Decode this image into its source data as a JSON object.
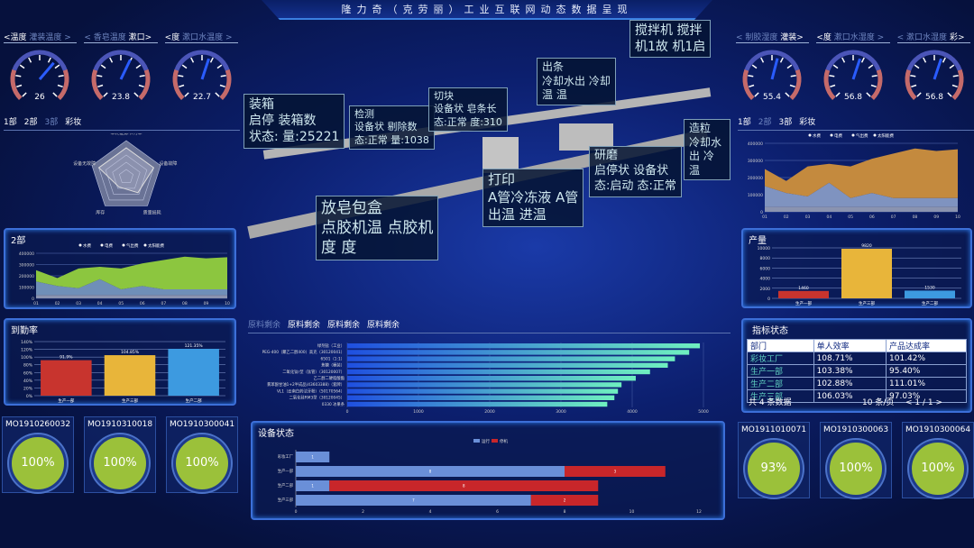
{
  "title": "隆力奇（克劳丽）工业互联网动态数据呈现",
  "left": {
    "gauge_tabs": [
      {
        "prev": "<温度",
        "label": "灌装温度 >"
      },
      {
        "prev": "< 香皂温度",
        "label": "漱口>"
      },
      {
        "prev": "<度",
        "label": "漱口水温度 >"
      }
    ],
    "gauges": [
      {
        "value": 26,
        "max": 40
      },
      {
        "value": 23.8,
        "max": 40
      },
      {
        "value": 22.7,
        "max": 40
      }
    ],
    "dept_tabs": [
      "1部",
      "2部",
      "3部",
      "彩妆"
    ],
    "radar": {
      "labels": [
        "单耗能源节约率",
        "设备故障",
        "质量损耗",
        "库存",
        "设备无故障"
      ],
      "values": [
        0.8,
        0.8,
        0.55,
        0.35,
        0.8
      ]
    },
    "area_panel_title": "2部",
    "attendance_title": "到勤率",
    "cards": [
      {
        "id": "MO1910260032",
        "pct": "100%"
      },
      {
        "id": "MO1910310018",
        "pct": "100%"
      },
      {
        "id": "MO1910300041",
        "pct": "100%"
      }
    ]
  },
  "area_chart_left": {
    "type": "area",
    "x": [
      "01",
      "02",
      "03",
      "04",
      "05",
      "06",
      "07",
      "08",
      "09",
      "10"
    ],
    "ylim": [
      0,
      400000
    ],
    "yticks": [
      "0",
      "100000",
      "200000",
      "300000",
      "400000"
    ],
    "series": [
      {
        "name": "水费",
        "values": [
          30000,
          30000,
          30000,
          30000,
          30000,
          30000,
          30000,
          30000,
          30000,
          30000
        ]
      },
      {
        "name": "电费",
        "values": [
          120000,
          80000,
          60000,
          140000,
          50000,
          80000,
          50000,
          50000,
          50000,
          50000
        ]
      },
      {
        "name": "气出费",
        "values": [
          100000,
          70000,
          175000,
          110000,
          185000,
          200000,
          260000,
          290000,
          275000,
          285000
        ]
      },
      {
        "name": "太阳能费",
        "values": [
          0,
          0,
          0,
          0,
          0,
          0,
          0,
          0,
          0,
          0
        ]
      }
    ],
    "colors": [
      "#8a93b0",
      "#6f8fb8",
      "#8cc63f"
    ]
  },
  "attendance_chart": {
    "type": "bar",
    "categories": [
      "生产一部",
      "生产三部",
      "生产二部"
    ],
    "values": [
      91.9,
      104.85,
      121.35
    ],
    "labels": [
      "91.9%",
      "104.85%",
      "121.35%"
    ],
    "ylim": [
      0,
      140
    ],
    "yticks": [
      "0%",
      "20%",
      "40%",
      "60%",
      "80%",
      "100%",
      "120%",
      "140%"
    ],
    "colors": [
      "#c8342e",
      "#e8b53a",
      "#3d9ae0"
    ]
  },
  "center": {
    "scene_labels": [
      {
        "t1": "装箱",
        "t2": "启停  装箱数",
        "t3": "状态: 量:25221"
      },
      {
        "t1": "检测",
        "t2": "设备状 剔除数",
        "t3": "态:正常 量:1038"
      },
      {
        "t1": "切块",
        "t2": "设备状 皂条长",
        "t3": "态:正常 度:310"
      },
      {
        "t1": "出条",
        "t2": "冷却水出 冷却",
        "t3": "温     温"
      },
      {
        "t1": "搅拌机 搅拌",
        "t2": "机1故 机1启",
        "t3": ""
      },
      {
        "t1": "放皂包盒",
        "t2": "点胶机温 点胶机",
        "t3": "度      度"
      },
      {
        "t1": "打印",
        "t2": "A管冷冻液 A管",
        "t3": "出温     进温"
      },
      {
        "t1": "研磨",
        "t2": "启停状 设备状",
        "t3": "态:启动 态:正常"
      },
      {
        "t1": "造粒",
        "t2": "冷却水出 冷",
        "t3": "温"
      }
    ],
    "material_tabs": [
      "原料剩余",
      "原料剩余",
      "原料剩余",
      "原料剩余"
    ],
    "device_status_title": "设备状态"
  },
  "material_chart": {
    "type": "bar",
    "orientation": "horizontal",
    "categories": [
      "绿剂盐（工业）",
      "PEG-400（聚乙二醇400）高克（30120041）",
      "6501（1:1）",
      "焦糖（桶装）",
      "二氧化钛r型（钛管）（30120007）",
      "乙二醇二硬脂酸酯",
      "氯苯酚甘油1+2半成品(43603388)（套牌）",
      "VL1（云南白药洁牙粉）（50170564）",
      "二氧化硅RM3型（30120045）",
      "0330 冰果条"
    ],
    "values": [
      4950,
      4800,
      4600,
      4500,
      4250,
      4050,
      3850,
      3800,
      3750,
      3650
    ],
    "xlim": [
      0,
      5000
    ],
    "xticks": [
      "0",
      "1000",
      "2000",
      "3000",
      "4000",
      "5000"
    ]
  },
  "device_chart": {
    "type": "bar",
    "orientation": "horizontal",
    "stacked": true,
    "categories": [
      "彩妆工厂",
      "生产一部",
      "生产二部",
      "生产三部"
    ],
    "xlim": [
      0,
      12
    ],
    "xticks": [
      "0",
      "2",
      "4",
      "6",
      "8",
      "10",
      "12"
    ],
    "series": [
      {
        "name": "运行",
        "values": [
          1,
          8,
          1,
          7
        ],
        "color": "#6a8fd8"
      },
      {
        "name": "停机",
        "values": [
          0,
          3,
          8,
          2
        ],
        "color": "#c8262a"
      }
    ]
  },
  "right": {
    "gauge_tabs": [
      {
        "prev": "< 制胶湿度",
        "label": "灌装>"
      },
      {
        "prev": "<度",
        "label": "漱口水湿度 >"
      },
      {
        "prev": "< 漱口水湿度",
        "label": "彩>"
      }
    ],
    "gauges": [
      {
        "value": 55.4,
        "max": 100
      },
      {
        "value": 56.8,
        "max": 100
      },
      {
        "value": 56.8,
        "max": 100
      }
    ],
    "dept_tabs": [
      "1部",
      "2部",
      "3部",
      "彩妆"
    ],
    "output_title": "产量",
    "kpi": {
      "title": "指标状态",
      "headers": [
        "部门",
        "单人效率",
        "产品达成率"
      ],
      "rows": [
        [
          "彩妆工厂",
          "108.71%",
          "101.42%"
        ],
        [
          "生产一部",
          "103.38%",
          "95.40%"
        ],
        [
          "生产二部",
          "102.88%",
          "111.01%"
        ],
        [
          "生产三部",
          "106.03%",
          "97.03%"
        ]
      ],
      "total": "共 4 条数据",
      "page_size": "10 条/页",
      "pager": "< 1 / 1 >"
    },
    "cards": [
      {
        "id": "MO1911010071",
        "pct": "93%"
      },
      {
        "id": "MO1910300063",
        "pct": "100%"
      },
      {
        "id": "MO1910300064",
        "pct": "100%"
      }
    ]
  },
  "area_chart_right": {
    "type": "area",
    "x": [
      "01",
      "02",
      "03",
      "04",
      "05",
      "06",
      "07",
      "08",
      "09",
      "10"
    ],
    "ylim": [
      0,
      400000
    ],
    "yticks": [
      "0",
      "100000",
      "200000",
      "300000",
      "400000"
    ],
    "series": [
      {
        "name": "水费",
        "values": [
          30000,
          30000,
          30000,
          30000,
          30000,
          30000,
          30000,
          30000,
          30000,
          30000
        ]
      },
      {
        "name": "电费",
        "values": [
          120000,
          80000,
          60000,
          140000,
          50000,
          80000,
          50000,
          50000,
          50000,
          50000
        ]
      },
      {
        "name": "气出费",
        "values": [
          100000,
          70000,
          175000,
          110000,
          185000,
          200000,
          260000,
          290000,
          275000,
          285000
        ]
      },
      {
        "name": "太阳能费",
        "values": [
          0,
          0,
          0,
          0,
          0,
          0,
          0,
          0,
          0,
          0
        ]
      }
    ],
    "colors": [
      "#8a93b0",
      "#7f93c0",
      "#c48a3e"
    ]
  },
  "output_chart": {
    "type": "bar",
    "categories": [
      "生产一部",
      "生产三部",
      "生产二部"
    ],
    "values": [
      1460,
      9820,
      1530
    ],
    "labels": [
      "1460",
      "9820",
      "1530"
    ],
    "ylim": [
      0,
      10000
    ],
    "yticks": [
      "0",
      "2000",
      "4000",
      "6000",
      "8000",
      "10000"
    ],
    "colors": [
      "#c8342e",
      "#e8b53a",
      "#3d9ae0"
    ]
  }
}
